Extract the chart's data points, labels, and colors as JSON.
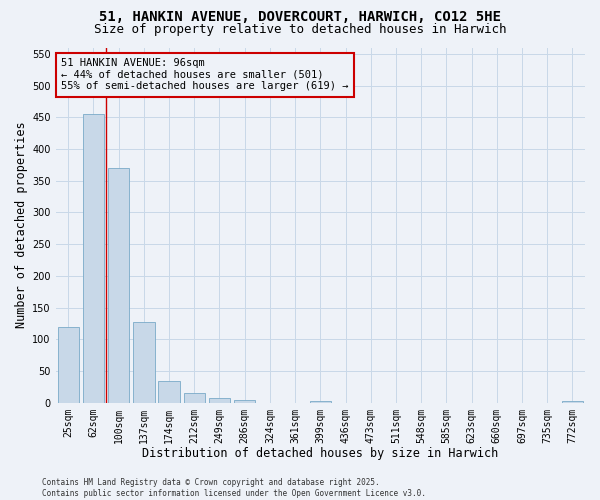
{
  "title1": "51, HANKIN AVENUE, DOVERCOURT, HARWICH, CO12 5HE",
  "title2": "Size of property relative to detached houses in Harwich",
  "xlabel": "Distribution of detached houses by size in Harwich",
  "ylabel": "Number of detached properties",
  "categories": [
    "25sqm",
    "62sqm",
    "100sqm",
    "137sqm",
    "174sqm",
    "212sqm",
    "249sqm",
    "286sqm",
    "324sqm",
    "361sqm",
    "399sqm",
    "436sqm",
    "473sqm",
    "511sqm",
    "548sqm",
    "585sqm",
    "623sqm",
    "660sqm",
    "697sqm",
    "735sqm",
    "772sqm"
  ],
  "values": [
    120,
    455,
    370,
    127,
    35,
    15,
    8,
    5,
    0,
    0,
    2,
    0,
    0,
    0,
    0,
    0,
    0,
    0,
    0,
    0,
    2
  ],
  "bar_color": "#c8d8e8",
  "bar_edge_color": "#7aaac8",
  "grid_color": "#c8d8e8",
  "bg_color": "#eef2f8",
  "annotation_text": "51 HANKIN AVENUE: 96sqm\n← 44% of detached houses are smaller (501)\n55% of semi-detached houses are larger (619) →",
  "annotation_box_color": "#cc0000",
  "red_line_x": 1.5,
  "ylim": [
    0,
    560
  ],
  "yticks": [
    0,
    50,
    100,
    150,
    200,
    250,
    300,
    350,
    400,
    450,
    500,
    550
  ],
  "footer": "Contains HM Land Registry data © Crown copyright and database right 2025.\nContains public sector information licensed under the Open Government Licence v3.0.",
  "title_fontsize": 10,
  "subtitle_fontsize": 9,
  "tick_fontsize": 7,
  "label_fontsize": 8.5,
  "annotation_fontsize": 7.5,
  "footer_fontsize": 5.5
}
